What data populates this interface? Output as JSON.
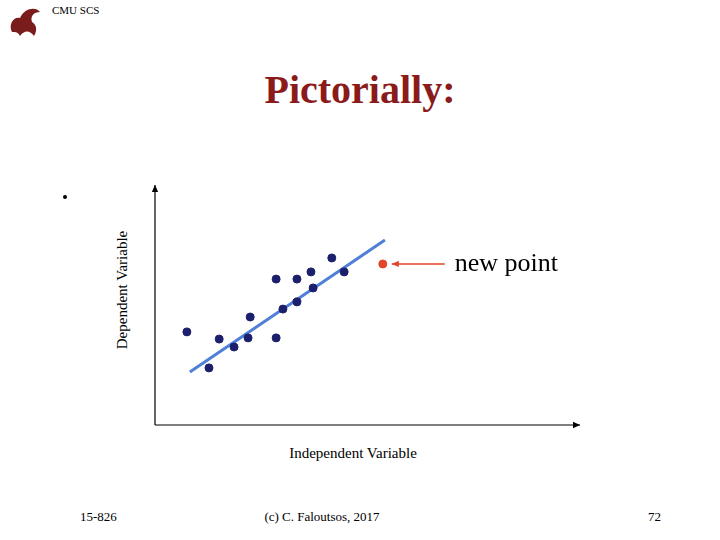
{
  "slide": {
    "header": "CMU SCS",
    "title": "Pictorially:",
    "footer": {
      "left": "15-826",
      "center": "(c) C. Faloutsos, 2017",
      "right": "72"
    }
  },
  "chart_data": {
    "type": "scatter",
    "x_label": "Independent Variable",
    "y_label": "Dependent Variable",
    "xlim": [
      0,
      100
    ],
    "ylim": [
      0,
      100
    ],
    "tick_labels": false,
    "grid": false,
    "series": [
      {
        "type": "scatter",
        "marker": "circle",
        "color": "#1c1f6b",
        "x": [
          7.5,
          12.7,
          15.1,
          18.6,
          21.9,
          22.4,
          28.5,
          28.5,
          30.1,
          33.4,
          33.4,
          36.7,
          37.2,
          41.6,
          44.5
        ],
        "values": [
          38.8,
          23.8,
          35.8,
          32.5,
          36.3,
          45.0,
          36.3,
          60.8,
          48.3,
          60.8,
          51.3,
          63.8,
          57.1,
          69.6,
          63.8
        ]
      },
      {
        "type": "line",
        "line_style": "solid",
        "color": "#4f7fd9",
        "x": [
          8.2,
          54.1
        ],
        "values": [
          22.1,
          77.1
        ]
      },
      {
        "type": "scatter",
        "marker": "circle",
        "color": "#e2452a",
        "x": [
          53.6
        ],
        "values": [
          67.1
        ],
        "annotation": "new point"
      }
    ]
  }
}
